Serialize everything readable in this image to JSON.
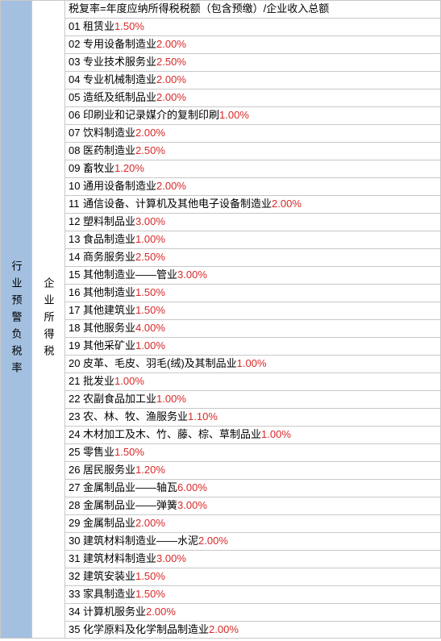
{
  "colors": {
    "leftBg": "#a3c0e0",
    "border": "#c8c8c8",
    "text": "#000000",
    "percent": "#d82828",
    "rowBg": "#ffffff"
  },
  "leftLabel": "行业预警负税率",
  "midLabel": "企业所得税",
  "formula": "税复率=年度应纳所得税税额（包含预缴）/企业收入总额",
  "rows": [
    {
      "no": "01",
      "name": "租赁业",
      "pct": "1.50%"
    },
    {
      "no": "02",
      "name": "专用设备制造业",
      "pct": "2.00%"
    },
    {
      "no": "03",
      "name": "专业技术服务业",
      "pct": "2.50%"
    },
    {
      "no": "04",
      "name": "专业机械制造业",
      "pct": "2.00%"
    },
    {
      "no": "05",
      "name": "造纸及纸制品业",
      "pct": "2.00%"
    },
    {
      "no": "06",
      "name": "印刷业和记录媒介的复制印刷",
      "pct": "1.00%"
    },
    {
      "no": "07",
      "name": "饮料制造业",
      "pct": "2.00%"
    },
    {
      "no": "08",
      "name": "医药制造业",
      "pct": "2.50%"
    },
    {
      "no": "09",
      "name": "畜牧业",
      "pct": "1.20%"
    },
    {
      "no": "10",
      "name": "通用设备制造业",
      "pct": "2.00%"
    },
    {
      "no": "11",
      "name": "通信设备、计算机及其他电子设备制造业",
      "pct": "2.00%"
    },
    {
      "no": "12",
      "name": "塑料制品业",
      "pct": "3.00%"
    },
    {
      "no": "13",
      "name": "食品制造业",
      "pct": "1.00%"
    },
    {
      "no": "14",
      "name": "商务服务业",
      "pct": "2.50%"
    },
    {
      "no": "15",
      "name": "其他制造业——管业",
      "pct": "3.00%"
    },
    {
      "no": "16",
      "name": "其他制造业",
      "pct": "1.50%"
    },
    {
      "no": "17",
      "name": "其他建筑业",
      "pct": "1.50%"
    },
    {
      "no": "18",
      "name": "其他服务业",
      "pct": "4.00%"
    },
    {
      "no": "19",
      "name": "其他采矿业",
      "pct": "1.00%"
    },
    {
      "no": "20",
      "name": "皮革、毛皮、羽毛(绒)及其制品业",
      "pct": "1.00%"
    },
    {
      "no": "21",
      "name": "批发业",
      "pct": "1.00%"
    },
    {
      "no": "22",
      "name": "农副食品加工业",
      "pct": "1.00%"
    },
    {
      "no": "23",
      "name": "农、林、牧、渔服务业",
      "pct": "1.10%"
    },
    {
      "no": "24",
      "name": "木材加工及木、竹、藤、棕、草制品业",
      "pct": "1.00%"
    },
    {
      "no": "25",
      "name": "零售业",
      "pct": "1.50%"
    },
    {
      "no": "26",
      "name": "居民服务业",
      "pct": "1.20%"
    },
    {
      "no": "27",
      "name": "金属制品业——轴瓦",
      "pct": "6.00%"
    },
    {
      "no": "28",
      "name": "金属制品业——弹簧",
      "pct": "3.00%"
    },
    {
      "no": "29",
      "name": "金属制品业",
      "pct": "2.00%"
    },
    {
      "no": "30",
      "name": "建筑材料制造业——水泥",
      "pct": "2.00%"
    },
    {
      "no": "31",
      "name": "建筑材料制造业",
      "pct": "3.00%"
    },
    {
      "no": "32",
      "name": "建筑安装业",
      "pct": "1.50%"
    },
    {
      "no": "33",
      "name": "家具制造业",
      "pct": "1.50%"
    },
    {
      "no": "34",
      "name": "计算机服务业",
      "pct": "2.00%"
    },
    {
      "no": "35",
      "name": "化学原料及化学制品制造业",
      "pct": "2.00%"
    }
  ]
}
